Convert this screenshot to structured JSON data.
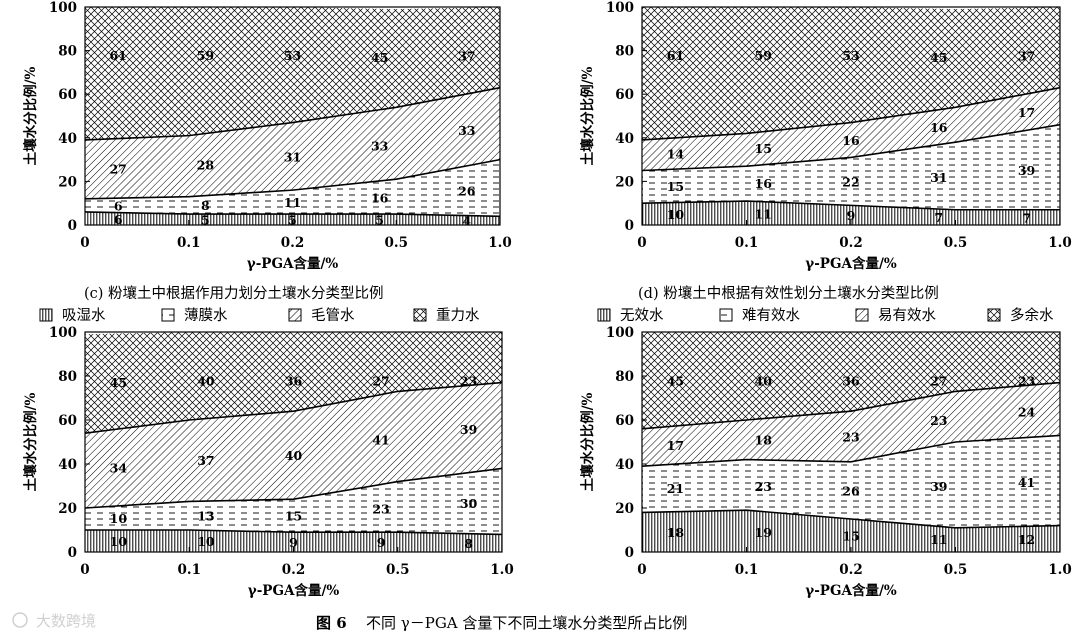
{
  "figure": {
    "caption_label": "图 6",
    "caption_text": "不同 γ－PGA 含量下不同土壤水分类型所占比例",
    "watermark": "大数跨境"
  },
  "colors": {
    "stroke": "#000000",
    "background": "#ffffff",
    "watermark": "#d0d0d0"
  },
  "legends": {
    "force": [
      {
        "label": "吸湿水",
        "pattern": "vertical"
      },
      {
        "label": "薄膜水",
        "pattern": "dashed"
      },
      {
        "label": "毛管水",
        "pattern": "diagonal"
      },
      {
        "label": "重力水",
        "pattern": "crosshatch"
      }
    ],
    "availability": [
      {
        "label": "无效水",
        "pattern": "vertical"
      },
      {
        "label": "难有效水",
        "pattern": "dashed"
      },
      {
        "label": "易有效水",
        "pattern": "diagonal"
      },
      {
        "label": "多余水",
        "pattern": "crosshatch"
      }
    ]
  },
  "chart_data": [
    {
      "id": "c",
      "type": "area",
      "stacked": true,
      "caption": "(c) 粉壤土中根据作用力划分土壤水分类型比例",
      "xlabel": "γ-PGA含量/%",
      "ylabel": "土壤水分比例/%",
      "x": [
        "0",
        "0.1",
        "0.2",
        "0.5",
        "1.0"
      ],
      "ylim": [
        0,
        100
      ],
      "yticks": [
        0,
        20,
        40,
        60,
        80,
        100
      ],
      "series": [
        {
          "name": "吸湿水",
          "values": [
            6,
            5,
            5,
            5,
            4
          ]
        },
        {
          "name": "薄膜水",
          "values": [
            6,
            8,
            11,
            16,
            26
          ]
        },
        {
          "name": "毛管水",
          "values": [
            27,
            28,
            31,
            33,
            33
          ]
        },
        {
          "name": "重力水",
          "values": [
            61,
            59,
            53,
            45,
            37
          ]
        }
      ]
    },
    {
      "id": "d",
      "type": "area",
      "stacked": true,
      "caption": "(d) 粉壤土中根据有效性划分土壤水分类型比例",
      "xlabel": "γ-PGA含量/%",
      "ylabel": "土壤水分比例/%",
      "x": [
        "0",
        "0.1",
        "0.2",
        "0.5",
        "1.0"
      ],
      "ylim": [
        0,
        100
      ],
      "yticks": [
        0,
        20,
        40,
        60,
        80,
        100
      ],
      "series": [
        {
          "name": "无效水",
          "values": [
            10,
            11,
            9,
            7,
            7
          ]
        },
        {
          "name": "难有效水",
          "values": [
            15,
            16,
            22,
            31,
            39
          ]
        },
        {
          "name": "易有效水",
          "values": [
            14,
            15,
            16,
            16,
            17
          ]
        },
        {
          "name": "多余水",
          "values": [
            61,
            59,
            53,
            45,
            37
          ]
        }
      ]
    },
    {
      "id": "e",
      "type": "area",
      "stacked": true,
      "xlabel": "γ-PGA含量/%",
      "ylabel": "土壤水分比例/%",
      "x": [
        "0",
        "0.1",
        "0.2",
        "0.5",
        "1.0"
      ],
      "ylim": [
        0,
        100
      ],
      "yticks": [
        0,
        20,
        40,
        60,
        80,
        100
      ],
      "series": [
        {
          "name": "吸湿水",
          "values": [
            10,
            10,
            9,
            9,
            8
          ]
        },
        {
          "name": "薄膜水",
          "values": [
            10,
            13,
            15,
            23,
            30
          ]
        },
        {
          "name": "毛管水",
          "values": [
            34,
            37,
            40,
            41,
            39
          ]
        },
        {
          "name": "重力水",
          "values": [
            45,
            40,
            36,
            27,
            23
          ]
        }
      ]
    },
    {
      "id": "f",
      "type": "area",
      "stacked": true,
      "xlabel": "γ-PGA含量/%",
      "ylabel": "土壤水分比例/%",
      "x": [
        "0",
        "0.1",
        "0.2",
        "0.5",
        "1.0"
      ],
      "ylim": [
        0,
        100
      ],
      "yticks": [
        0,
        20,
        40,
        60,
        80,
        100
      ],
      "series": [
        {
          "name": "无效水",
          "values": [
            18,
            19,
            15,
            11,
            12
          ]
        },
        {
          "name": "难有效水",
          "values": [
            21,
            23,
            26,
            39,
            41
          ]
        },
        {
          "name": "易有效水",
          "values": [
            17,
            18,
            23,
            23,
            24
          ]
        },
        {
          "name": "多余水",
          "values": [
            45,
            40,
            36,
            27,
            23
          ]
        }
      ]
    }
  ]
}
